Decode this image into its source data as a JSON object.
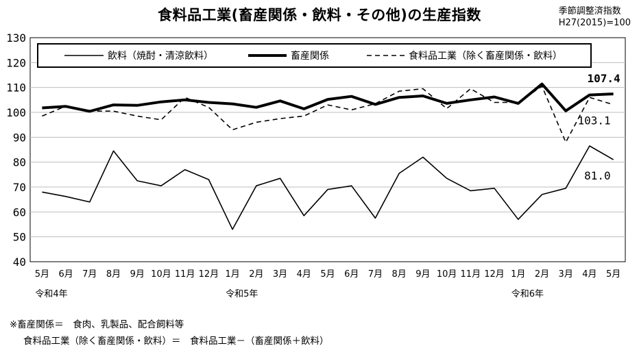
{
  "title": "食料品工業(畜産関係・飲料・その他)の生産指数",
  "index_note": [
    "季節調整済指数",
    "H27(2015)=100"
  ],
  "footnotes": [
    "※畜産関係＝　食肉、乳製品、配合飼料等",
    "食料品工業（除く畜産関係・飲料）＝　食料品工業－（畜産関係＋飲料）"
  ],
  "chart_data": {
    "type": "line",
    "categories": [
      "5月",
      "6月",
      "7月",
      "8月",
      "9月",
      "10月",
      "11月",
      "12月",
      "1月",
      "2月",
      "3月",
      "4月",
      "5月",
      "6月",
      "7月",
      "8月",
      "9月",
      "10月",
      "11月",
      "12月",
      "1月",
      "2月",
      "3月",
      "4月",
      "5月"
    ],
    "year_labels": [
      {
        "index": 0,
        "label": "令和4年"
      },
      {
        "index": 8,
        "label": "令和5年"
      },
      {
        "index": 20,
        "label": "令和6年"
      }
    ],
    "ylim": [
      40,
      130
    ],
    "yticks": [
      40,
      50,
      60,
      70,
      80,
      90,
      100,
      110,
      120,
      130
    ],
    "grid": true,
    "legend_position": "top",
    "series": [
      {
        "name": "飲料（焼酎・清涼飲料）",
        "style": "thin",
        "color": "#000000",
        "values": [
          68.0,
          66.2,
          64.0,
          84.5,
          72.5,
          70.5,
          77.0,
          73.0,
          53.0,
          70.5,
          73.5,
          58.5,
          69.0,
          70.5,
          57.5,
          75.5,
          82.0,
          73.5,
          68.5,
          69.5,
          57.0,
          67.0,
          69.5,
          86.5,
          81.0
        ],
        "end_label": "81.0"
      },
      {
        "name": "畜産関係",
        "style": "thick",
        "color": "#000000",
        "values": [
          101.8,
          102.4,
          100.4,
          103.0,
          102.8,
          104.2,
          105.0,
          104.0,
          103.4,
          102.0,
          104.6,
          101.4,
          105.2,
          106.4,
          103.2,
          106.0,
          106.6,
          103.6,
          105.0,
          106.2,
          103.6,
          111.4,
          100.6,
          107.0,
          107.4
        ],
        "end_label": "107.4"
      },
      {
        "name": "食料品工業（除く畜産関係・飲料）",
        "style": "dashed",
        "color": "#000000",
        "values": [
          98.5,
          102.5,
          100.5,
          100.5,
          98.5,
          97.0,
          106.0,
          102.0,
          93.0,
          96.0,
          97.5,
          98.5,
          103.0,
          101.0,
          103.5,
          108.5,
          109.5,
          101.5,
          109.5,
          104.0,
          104.0,
          110.5,
          88.0,
          106.0,
          103.1
        ],
        "end_label": "103.1"
      }
    ]
  }
}
